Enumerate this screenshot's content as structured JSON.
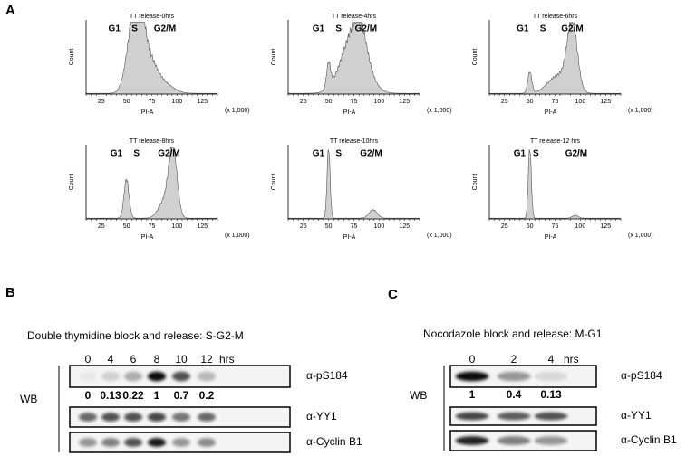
{
  "panels": {
    "A": {
      "label": "A",
      "plots": [
        {
          "title": "TT release-0hrs",
          "phases": [
            "G1",
            "S",
            "G2/M"
          ],
          "ylabel": "Count",
          "xlabel": "PI-A",
          "xticks": [
            25,
            50,
            75,
            100,
            125
          ],
          "xunit": "(x 1,000)"
        },
        {
          "title": "TT release-4hrs",
          "phases": [
            "G1",
            "S",
            "G2/M"
          ],
          "ylabel": "Count",
          "xlabel": "PI-A",
          "xticks": [
            25,
            50,
            75,
            100,
            125
          ],
          "xunit": "(x 1,000)"
        },
        {
          "title": "TT release-6hrs",
          "phases": [
            "G1",
            "S",
            "G2/M"
          ],
          "ylabel": "Count",
          "xlabel": "PI-A",
          "xticks": [
            25,
            50,
            75,
            100,
            125
          ],
          "xunit": "(x 1,000)"
        },
        {
          "title": "TT release-8hrs",
          "phases": [
            "G1",
            "S",
            "G2/M"
          ],
          "ylabel": "Count",
          "xlabel": "PI-A",
          "xticks": [
            25,
            50,
            75,
            100,
            125
          ],
          "xunit": "(x 1,000)"
        },
        {
          "title": "TT release-10hrs",
          "phases": [
            "G1",
            "S",
            "G2/M"
          ],
          "ylabel": "Count",
          "xlabel": "PI-A",
          "xticks": [
            25,
            50,
            75,
            100,
            125
          ],
          "xunit": "(x 1,000)"
        },
        {
          "title": "TT release-12 hrs",
          "phases": [
            "G1",
            "S",
            "G2/M"
          ],
          "ylabel": "Count",
          "xlabel": "PI-A",
          "xticks": [
            25,
            50,
            75,
            100,
            125
          ],
          "xunit": "(x 1,000)"
        }
      ]
    },
    "B": {
      "label": "B",
      "title": "Double thymidine block and release: S-G2-M",
      "lanes": [
        "0",
        "4",
        "6",
        "8",
        "10",
        "12"
      ],
      "unit": "hrs",
      "side": "WB",
      "blots": [
        {
          "name": "α-pS184",
          "quant": [
            "0",
            "0.13",
            "0.22",
            "1",
            "0.7",
            "0.2"
          ]
        },
        {
          "name": "α-YY1"
        },
        {
          "name": "α-Cyclin B1"
        }
      ]
    },
    "C": {
      "label": "C",
      "title": "Nocodazole block and release: M-G1",
      "lanes": [
        "0",
        "2",
        "4"
      ],
      "unit": "hrs",
      "side": "WB",
      "blots": [
        {
          "name": "α-pS184",
          "quant": [
            "1",
            "0.4",
            "0.13"
          ]
        },
        {
          "name": "α-YY1"
        },
        {
          "name": "α-Cyclin B1"
        }
      ]
    }
  }
}
